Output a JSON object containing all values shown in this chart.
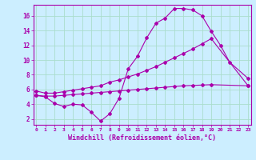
{
  "xlabel": "Windchill (Refroidissement éolien,°C)",
  "bg_color": "#cceeff",
  "grid_color": "#aaddcc",
  "line_color": "#aa00aa",
  "x_ticks": [
    0,
    1,
    2,
    3,
    4,
    5,
    6,
    7,
    8,
    9,
    10,
    11,
    12,
    13,
    14,
    15,
    16,
    17,
    18,
    19,
    20,
    21,
    22,
    23
  ],
  "y_ticks": [
    2,
    4,
    6,
    8,
    10,
    12,
    14,
    16
  ],
  "xlim": [
    -0.3,
    23.3
  ],
  "ylim": [
    1.2,
    17.5
  ],
  "line1_x": [
    0,
    1,
    2,
    3,
    4,
    5,
    6,
    7,
    8,
    9,
    10,
    11,
    12,
    13,
    14,
    15,
    16,
    17,
    18,
    19,
    20,
    21,
    23
  ],
  "line1_y": [
    5.2,
    5.0,
    4.1,
    3.7,
    4.0,
    3.9,
    2.9,
    1.7,
    2.7,
    4.8,
    8.8,
    10.5,
    13.0,
    15.0,
    15.7,
    17.0,
    17.0,
    16.8,
    16.0,
    13.9,
    12.0,
    9.7,
    7.5
  ],
  "line2_x": [
    0,
    1,
    2,
    3,
    4,
    5,
    6,
    7,
    8,
    9,
    10,
    11,
    12,
    13,
    14,
    15,
    16,
    17,
    18,
    19,
    23
  ],
  "line2_y": [
    5.8,
    5.5,
    5.5,
    5.7,
    5.9,
    6.1,
    6.3,
    6.5,
    7.0,
    7.3,
    7.7,
    8.1,
    8.6,
    9.1,
    9.7,
    10.3,
    10.9,
    11.5,
    12.2,
    12.9,
    6.5
  ],
  "line3_x": [
    0,
    1,
    2,
    3,
    4,
    5,
    6,
    7,
    8,
    9,
    10,
    11,
    12,
    13,
    14,
    15,
    16,
    17,
    18,
    19,
    23
  ],
  "line3_y": [
    5.2,
    5.1,
    5.1,
    5.2,
    5.3,
    5.4,
    5.5,
    5.6,
    5.7,
    5.8,
    5.9,
    6.0,
    6.1,
    6.2,
    6.3,
    6.4,
    6.5,
    6.55,
    6.6,
    6.65,
    6.5
  ]
}
